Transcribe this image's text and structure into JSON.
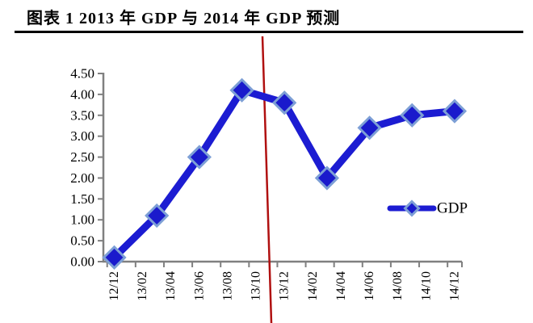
{
  "figure": {
    "title": "图表 1 2013 年 GDP 与 2014 年 GDP 预测"
  },
  "colors": {
    "series_blue": "#1c1cd2",
    "marker_fill": "#1a1acc",
    "marker_border": "#7d9fd6",
    "red_line": "#b01010",
    "axis_gray": "#808080",
    "text_black": "#000000"
  },
  "chart_data": {
    "type": "line",
    "title": "图表 1 2013 年 GDP 与 2014 年 GDP 预测",
    "grid": false,
    "ylim": [
      0,
      4.5
    ],
    "y_tick_labels": [
      "0.00",
      "0.50",
      "1.00",
      "1.50",
      "2.00",
      "2.50",
      "3.00",
      "3.50",
      "4.00",
      "4.50"
    ],
    "x_axis_tick_labels": [
      "12/12",
      "13/02",
      "13/04",
      "13/06",
      "13/08",
      "13/10",
      "13/12",
      "14/02",
      "14/04",
      "14/06",
      "14/08",
      "14/10",
      "14/12"
    ],
    "series": [
      {
        "name": "GDP",
        "x": [
          "12/12",
          "13/03",
          "13/06",
          "13/09",
          "13/12",
          "14/03",
          "14/06",
          "14/09",
          "14/12"
        ],
        "values": [
          0.1,
          1.1,
          2.5,
          4.1,
          3.8,
          2.0,
          3.2,
          3.5,
          3.6
        ]
      }
    ],
    "legend": {
      "entries": [
        "GDP"
      ],
      "position": "right-center"
    },
    "annotations": [
      {
        "type": "vertical-line",
        "color": "#b01010",
        "x_position_between": [
          "13/10",
          "13/12"
        ]
      }
    ]
  }
}
